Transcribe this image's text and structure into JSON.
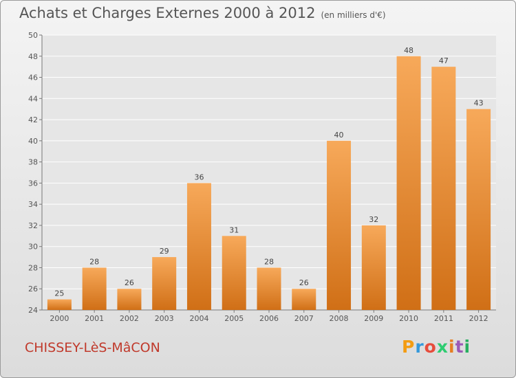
{
  "title": "Achats et Charges Externes 2000 à 2012",
  "subtitle": "(en milliers d'€)",
  "commune": "CHISSEY-LèS-MâCON",
  "brand": {
    "letters": [
      "P",
      "r",
      "o",
      "x",
      "i",
      "t",
      "i"
    ],
    "colors": [
      "#f39c12",
      "#3498db",
      "#e74c3c",
      "#2ecc71",
      "#e67e22",
      "#9b59b6",
      "#27ae60"
    ]
  },
  "colors": {
    "bar_top": "#f7a95a",
    "bar_bottom": "#d06f16",
    "grid": "#ffffff",
    "axis": "#777777"
  },
  "chart_data": {
    "type": "bar",
    "categories": [
      "2000",
      "2001",
      "2002",
      "2003",
      "2004",
      "2005",
      "2006",
      "2007",
      "2008",
      "2009",
      "2010",
      "2011",
      "2012"
    ],
    "values": [
      25,
      28,
      26,
      29,
      36,
      31,
      28,
      26,
      40,
      32,
      48,
      47,
      43
    ],
    "title": "Achats et Charges Externes 2000 à 2012",
    "xlabel": "",
    "ylabel": "",
    "ylim": [
      24,
      50
    ],
    "yticks": [
      24,
      26,
      28,
      30,
      32,
      34,
      36,
      38,
      40,
      42,
      44,
      46,
      48,
      50
    ],
    "grid": true
  }
}
